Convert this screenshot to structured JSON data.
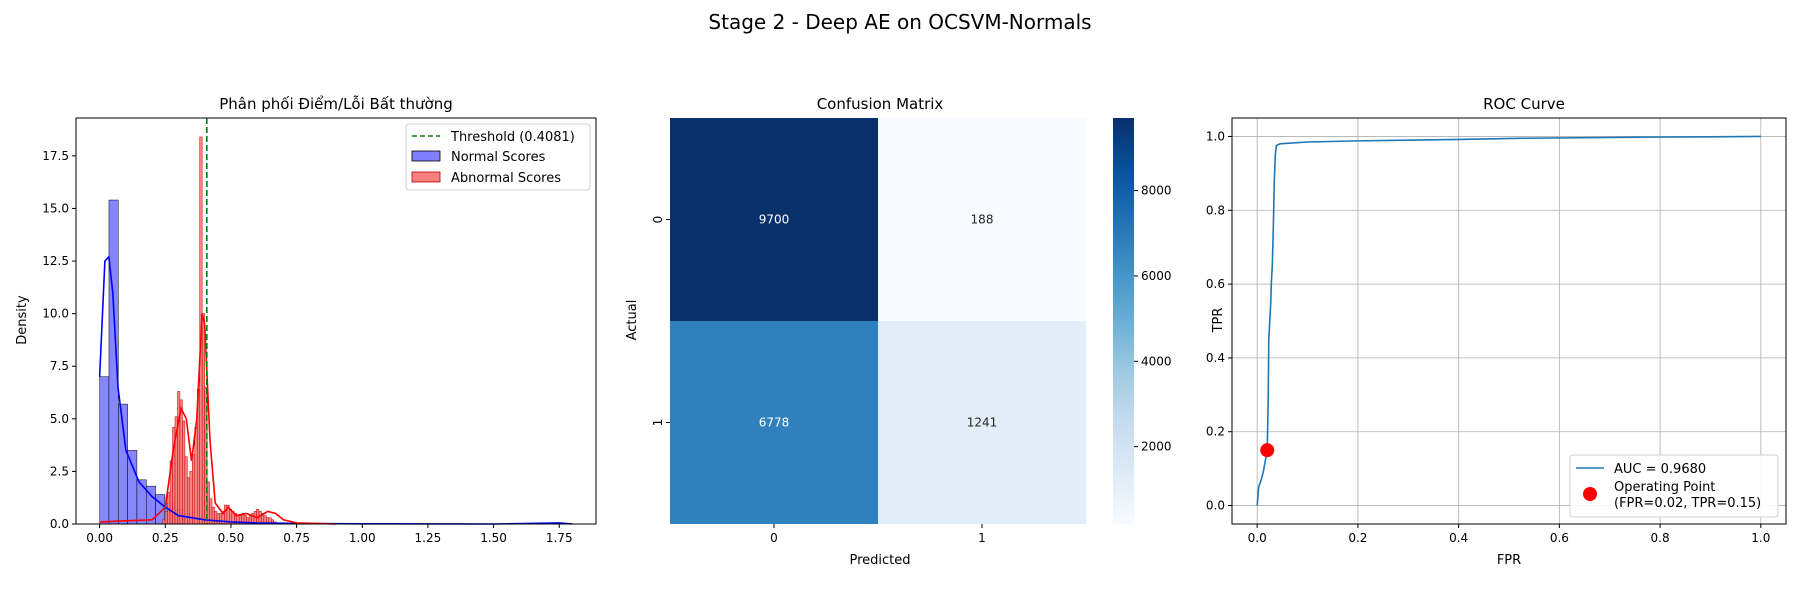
{
  "figure": {
    "suptitle": "Stage 2 - Deep AE on OCSVM-Normals"
  },
  "colors": {
    "normal": "#0000ff",
    "normal_fill": "#7f7fff",
    "abnormal": "#ff0000",
    "abnormal_fill": "#f58080",
    "threshold": "#008000",
    "roc": "#1f77b4",
    "point": "#ff0000",
    "cm_low": "#f7fbff",
    "cm_high": "#08306b",
    "grid": "#b0b0b0"
  },
  "chart_data": [
    {
      "type": "histogram",
      "title": "Phân phối Điểm/Lỗi Bất thường",
      "xlabel": "",
      "ylabel": "Density",
      "xlim": [
        -0.09,
        1.89
      ],
      "ylim": [
        0,
        19.3
      ],
      "xticks": [
        "0.00",
        "0.25",
        "0.50",
        "0.75",
        "1.00",
        "1.25",
        "1.50",
        "1.75"
      ],
      "yticks": [
        "0.0",
        "2.5",
        "5.0",
        "7.5",
        "10.0",
        "12.5",
        "15.0",
        "17.5"
      ],
      "legend": {
        "position": "top-right",
        "entries": [
          "Threshold (0.4081)",
          "Normal Scores",
          "Abnormal Scores"
        ]
      },
      "threshold": 0.4081,
      "series": [
        {
          "name": "Normal Scores",
          "bin_start": 0.0,
          "bin_width": 0.0355,
          "values": [
            7.0,
            15.4,
            5.7,
            3.5,
            2.1,
            1.8,
            1.4,
            1.0,
            0.7,
            0.5,
            0.3,
            0.2,
            0.1,
            0.08,
            0.05,
            0.04,
            0.02,
            0.02,
            0.01,
            0.01
          ],
          "kde": [
            [
              0.0,
              7.0
            ],
            [
              0.02,
              12.5
            ],
            [
              0.035,
              12.7
            ],
            [
              0.05,
              11.0
            ],
            [
              0.07,
              6.5
            ],
            [
              0.1,
              3.5
            ],
            [
              0.15,
              2.0
            ],
            [
              0.2,
              1.3
            ],
            [
              0.25,
              0.8
            ],
            [
              0.3,
              0.4
            ],
            [
              0.4,
              0.2
            ],
            [
              0.5,
              0.1
            ],
            [
              0.6,
              0.05
            ],
            [
              0.8,
              0.02
            ],
            [
              1.0,
              0.01
            ],
            [
              1.5,
              0.0
            ],
            [
              1.75,
              0.05
            ],
            [
              1.8,
              0.0
            ]
          ]
        },
        {
          "name": "Abnormal Scores",
          "bin_start": 0.24,
          "bin_width": 0.0094,
          "values": [
            0.2,
            0.6,
            1.5,
            3.0,
            4.6,
            5.1,
            6.3,
            5.9,
            4.9,
            3.2,
            2.2,
            2.5,
            3.3,
            4.6,
            6.4,
            18.4,
            10.0,
            6.5,
            2.0,
            1.2,
            0.8,
            0.6,
            0.5,
            0.5,
            0.6,
            0.9,
            0.9,
            0.7,
            0.6,
            0.5,
            0.4,
            0.4,
            0.5,
            0.4,
            0.3,
            0.4,
            0.5,
            0.6,
            0.7,
            0.6,
            0.5,
            0.4,
            0.3,
            0.3,
            0.2,
            0.1
          ],
          "kde": [
            [
              0.0,
              0.1
            ],
            [
              0.1,
              0.15
            ],
            [
              0.2,
              0.2
            ],
            [
              0.25,
              0.8
            ],
            [
              0.28,
              3.5
            ],
            [
              0.31,
              5.5
            ],
            [
              0.33,
              5.0
            ],
            [
              0.35,
              3.0
            ],
            [
              0.37,
              5.0
            ],
            [
              0.39,
              10.0
            ],
            [
              0.4,
              9.5
            ],
            [
              0.42,
              4.0
            ],
            [
              0.44,
              1.0
            ],
            [
              0.47,
              0.5
            ],
            [
              0.49,
              0.8
            ],
            [
              0.52,
              0.4
            ],
            [
              0.56,
              0.5
            ],
            [
              0.6,
              0.3
            ],
            [
              0.64,
              0.6
            ],
            [
              0.67,
              0.5
            ],
            [
              0.7,
              0.2
            ],
            [
              0.75,
              0.05
            ],
            [
              0.9,
              0.0
            ]
          ]
        }
      ]
    },
    {
      "type": "heatmap",
      "title": "Confusion Matrix",
      "xlabel": "Predicted",
      "ylabel": "Actual",
      "x_categories": [
        "0",
        "1"
      ],
      "y_categories": [
        "0",
        "1"
      ],
      "values": [
        [
          9700,
          188
        ],
        [
          6778,
          1241
        ]
      ],
      "colorbar": {
        "min": 188,
        "max": 9700,
        "ticks": [
          "2000",
          "4000",
          "6000",
          "8000"
        ]
      }
    },
    {
      "type": "line",
      "title": "ROC Curve",
      "xlabel": "FPR",
      "ylabel": "TPR",
      "xlim": [
        -0.05,
        1.05
      ],
      "ylim": [
        -0.05,
        1.05
      ],
      "grid": true,
      "xticks": [
        "0.0",
        "0.2",
        "0.4",
        "0.6",
        "0.8",
        "1.0"
      ],
      "yticks": [
        "0.0",
        "0.2",
        "0.4",
        "0.6",
        "0.8",
        "1.0"
      ],
      "legend": {
        "position": "bottom-right",
        "entries": [
          "AUC = 0.9680",
          "Operating Point",
          "(FPR=0.02, TPR=0.15)"
        ]
      },
      "series": [
        {
          "name": "AUC = 0.9680",
          "points": [
            [
              0,
              0
            ],
            [
              0.003,
              0.05
            ],
            [
              0.008,
              0.07
            ],
            [
              0.012,
              0.09
            ],
            [
              0.016,
              0.12
            ],
            [
              0.02,
              0.15
            ],
            [
              0.022,
              0.3
            ],
            [
              0.023,
              0.45
            ],
            [
              0.025,
              0.5
            ],
            [
              0.027,
              0.55
            ],
            [
              0.028,
              0.6
            ],
            [
              0.03,
              0.65
            ],
            [
              0.032,
              0.75
            ],
            [
              0.034,
              0.88
            ],
            [
              0.036,
              0.95
            ],
            [
              0.038,
              0.975
            ],
            [
              0.045,
              0.98
            ],
            [
              0.1,
              0.985
            ],
            [
              0.2,
              0.988
            ],
            [
              0.3,
              0.99
            ],
            [
              0.4,
              0.992
            ],
            [
              0.52,
              0.995
            ],
            [
              0.76,
              0.998
            ],
            [
              0.9,
              0.999
            ],
            [
              1.0,
              1.0
            ]
          ]
        }
      ],
      "operating_point": {
        "fpr": 0.02,
        "tpr": 0.15
      }
    }
  ]
}
